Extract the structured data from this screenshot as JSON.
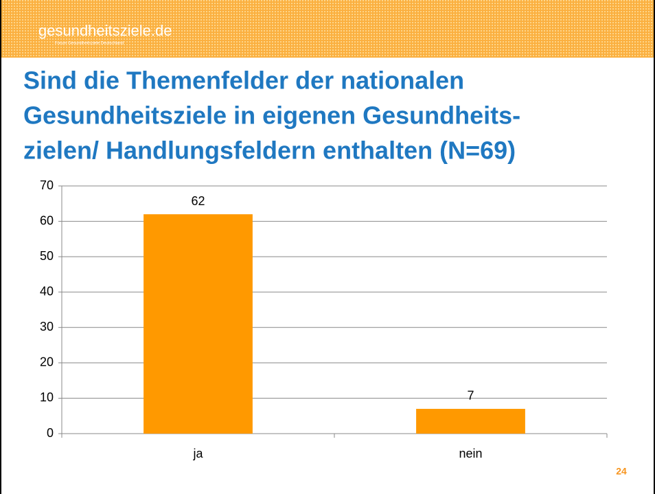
{
  "slide": {
    "logo": "gesundheitsziele.de",
    "logo_subtitle": "Forum Gesundheitsziele Deutschland",
    "title": [
      "Sind die Themenfelder der nationalen",
      "Gesundheitsziele in eigenen Gesundheits-",
      "zielen/ Handlungsfeldern enthalten (N=69)"
    ],
    "page_number": "24"
  },
  "chart_data": {
    "type": "bar",
    "categories": [
      "ja",
      "nein"
    ],
    "values": [
      62,
      7
    ],
    "color": "#ff9900",
    "ylim": [
      0,
      70
    ],
    "yticks": [
      0,
      10,
      20,
      30,
      40,
      50,
      60,
      70
    ],
    "grid": true
  }
}
